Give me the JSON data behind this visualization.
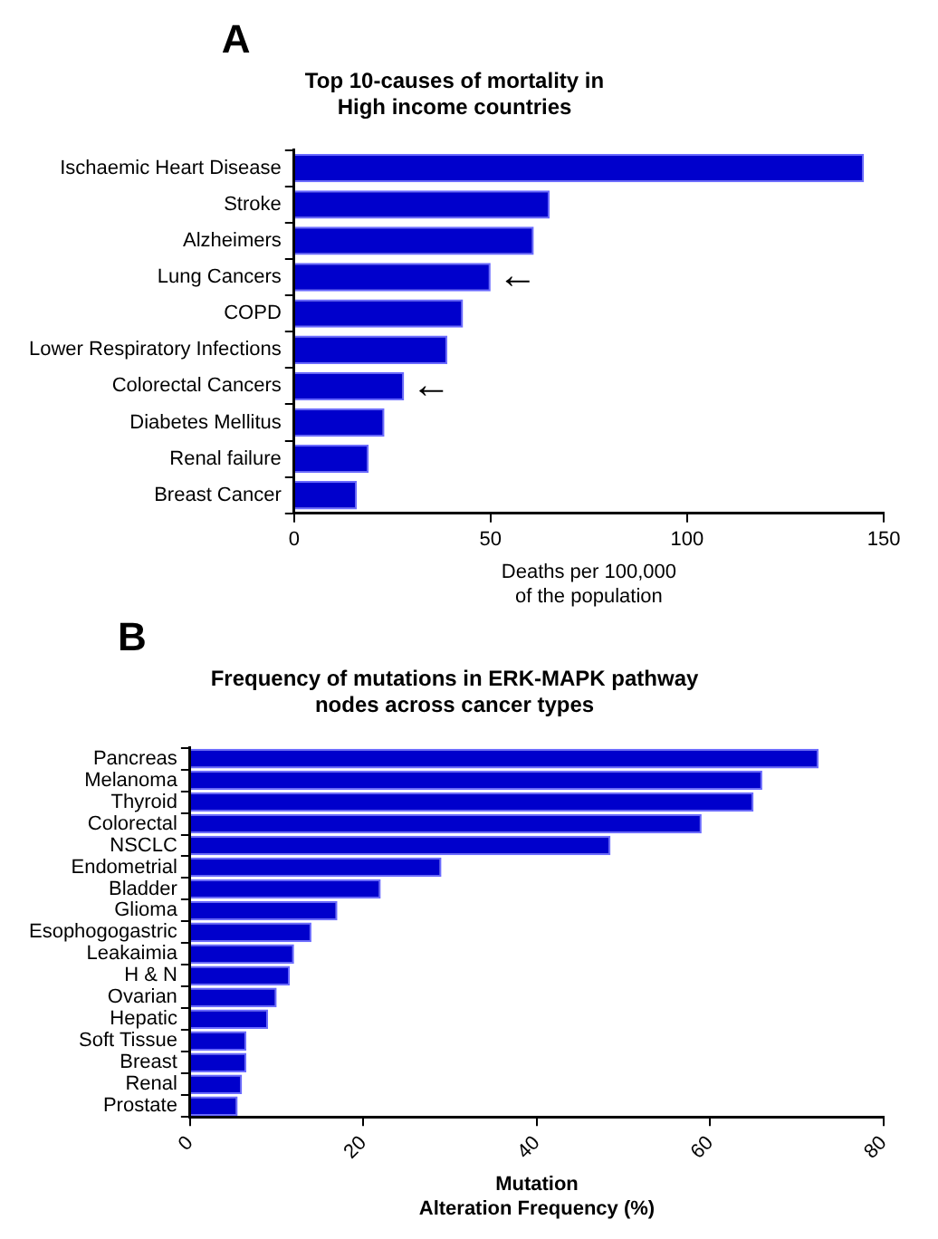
{
  "chart_data": [
    {
      "type": "bar",
      "orientation": "horizontal",
      "title": "Top 10-causes of mortality in\nHigh income countries",
      "xlabel": "Deaths per 100,000\nof the population",
      "categories": [
        "Ischaemic Heart Disease",
        "Stroke",
        "Alzheimers",
        "Lung Cancers",
        "COPD",
        "Lower Respiratory Infections",
        "Colorectal Cancers",
        "Diabetes Mellitus",
        "Renal failure",
        "Breast Cancer"
      ],
      "values": [
        145,
        65,
        61,
        50,
        43,
        39,
        28,
        23,
        19,
        16
      ],
      "color": "#0000cc",
      "xlim": [
        0,
        150
      ],
      "xticks": [
        0,
        50,
        100,
        150
      ],
      "grid": false,
      "annotations": [
        "A",
        {
          "text": "←",
          "x": 50,
          "y": "Lung Cancers"
        },
        {
          "text": "←",
          "x": 28,
          "y": "Colorectal Cancers"
        }
      ]
    },
    {
      "type": "bar",
      "orientation": "horizontal",
      "title": "Frequency of mutations in ERK-MAPK pathway\nnodes across cancer types",
      "xlabel": "Mutation\nAlteration Frequency (%)",
      "categories": [
        "Pancreas",
        "Melanoma",
        "Thyroid",
        "Colorectal",
        "NSCLC",
        "Endometrial",
        "Bladder",
        "Glioma",
        "Esophogogastric",
        "Leakaimia",
        "H & N",
        "Ovarian",
        "Hepatic",
        "Soft Tissue",
        "Breast",
        "Renal",
        "Prostate"
      ],
      "values": [
        72.5,
        66,
        65,
        59,
        48.5,
        29,
        22,
        17,
        14,
        12,
        11.5,
        10,
        9,
        6.5,
        6.5,
        6,
        5.5
      ],
      "color": "#0000cc",
      "xlim": [
        0,
        80
      ],
      "xticks": [
        0,
        20,
        40,
        60,
        80
      ],
      "grid": false,
      "annotations": [
        "B"
      ]
    }
  ]
}
